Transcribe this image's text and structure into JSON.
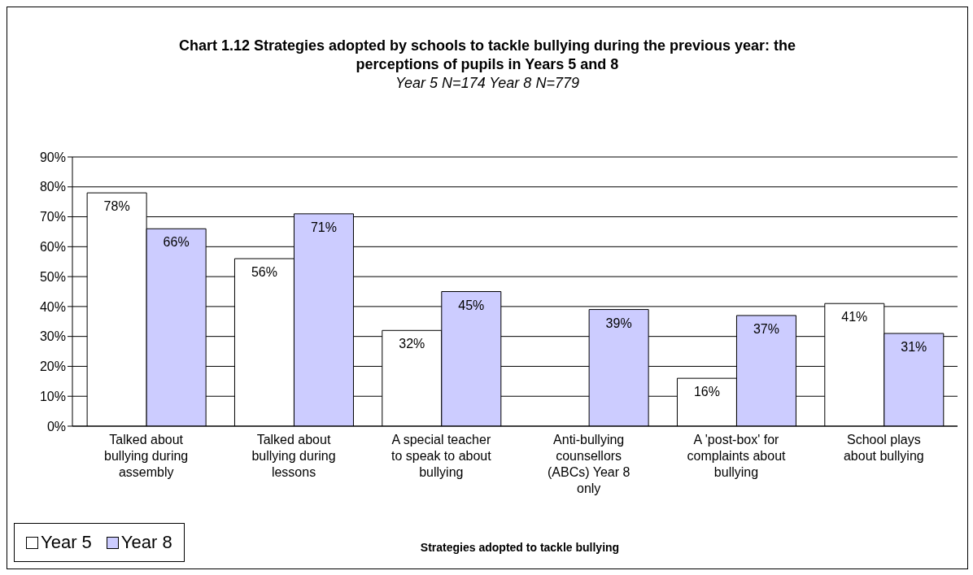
{
  "chart_data": {
    "type": "bar",
    "title": "Chart 1.12 Strategies adopted by schools to tackle bullying during the previous year: the perceptions of pupils in Years 5 and 8",
    "subtitle": "Year 5 N=174 Year 8 N=779",
    "xlabel": "Strategies adopted to tackle bullying",
    "categories": [
      "Talked about bullying during assembly",
      "Talked about bullying during lessons",
      "A special teacher to speak to about bullying",
      "Anti-bullying counsellors (ABCs) Year 8 only",
      "A 'post-box' for complaints about bullying",
      "School plays about bullying"
    ],
    "series": [
      {
        "name": "Year 5",
        "color": "#ffffff",
        "values": [
          78,
          56,
          32,
          null,
          16,
          41
        ],
        "value_labels": [
          "78%",
          "56%",
          "32%",
          null,
          "16%",
          "41%"
        ]
      },
      {
        "name": "Year 8",
        "color": "#ccccff",
        "values": [
          66,
          71,
          45,
          39,
          37,
          31
        ],
        "value_labels": [
          "66%",
          "71%",
          "45%",
          "39%",
          "37%",
          "31%"
        ]
      }
    ],
    "ylim": [
      0,
      90
    ],
    "yticks": [
      {
        "value": 0,
        "label": "0%"
      },
      {
        "value": 10,
        "label": "10%"
      },
      {
        "value": 20,
        "label": "20%"
      },
      {
        "value": 30,
        "label": "30%"
      },
      {
        "value": 40,
        "label": "40%"
      },
      {
        "value": 50,
        "label": "50%"
      },
      {
        "value": 60,
        "label": "60%"
      },
      {
        "value": 70,
        "label": "70%"
      },
      {
        "value": 80,
        "label": "80%"
      },
      {
        "value": 90,
        "label": "90%"
      }
    ],
    "grid": "y",
    "legend": "bottom left"
  }
}
